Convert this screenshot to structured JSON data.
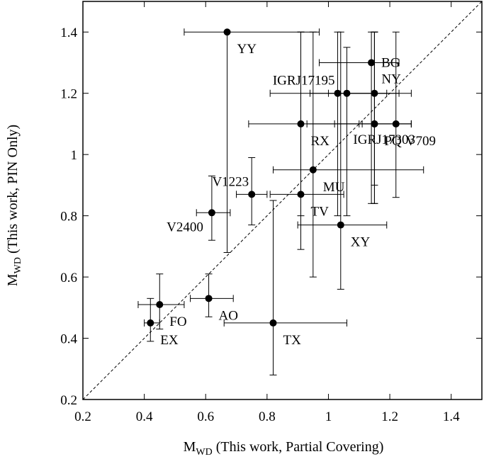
{
  "chart_data": {
    "type": "scatter",
    "x_axis": {
      "label_main": "M",
      "label_sub": "WD",
      "label_rest": " (This work, Partial Covering)",
      "range": [
        0.2,
        1.5
      ],
      "ticks": [
        0.2,
        0.4,
        0.6,
        0.8,
        1,
        1.2,
        1.4
      ],
      "tick_labels": [
        "0.2",
        "0.4",
        "0.6",
        "0.8",
        "1",
        "1.2",
        "1.4"
      ]
    },
    "y_axis": {
      "label_main": "M",
      "label_sub": "WD",
      "label_rest": " (This work, PIN Only)",
      "range": [
        0.2,
        1.5
      ],
      "ticks": [
        0.2,
        0.4,
        0.6,
        0.8,
        1,
        1.2,
        1.4
      ],
      "tick_labels": [
        "0.2",
        "0.4",
        "0.6",
        "0.8",
        "1",
        "1.2",
        "1.4"
      ]
    },
    "reference_line": "y = x (dashed)",
    "grid": false,
    "points": [
      {
        "label": "YY",
        "x": 0.67,
        "y": 1.4,
        "xerr": [
          0.53,
          0.97
        ],
        "yerr": [
          0.68,
          1.4
        ],
        "label_pos": "below-right"
      },
      {
        "label": "BG",
        "x": 1.14,
        "y": 1.3,
        "xerr": [
          0.97,
          1.23
        ],
        "yerr": [
          0.84,
          1.4
        ],
        "label_pos": "right"
      },
      {
        "label": "IGRJ17195",
        "x": 1.03,
        "y": 1.2,
        "xerr": [
          0.81,
          1.23
        ],
        "yerr": [
          0.8,
          1.4
        ],
        "label_pos": "above-left"
      },
      {
        "label": "",
        "x": 1.06,
        "y": 1.2,
        "xerr": [
          0.94,
          1.19
        ],
        "yerr": [
          0.8,
          1.35
        ],
        "label_pos": "none"
      },
      {
        "label": "NY",
        "x": 1.15,
        "y": 1.2,
        "xerr": [
          1.0,
          1.27
        ],
        "yerr": [
          0.9,
          1.4
        ],
        "label_pos": "above-right"
      },
      {
        "label": "IGRJ17303",
        "x": 1.15,
        "y": 1.1,
        "xerr": [
          0.93,
          1.27
        ],
        "yerr": [
          0.84,
          1.4
        ],
        "label_pos": "above"
      },
      {
        "label": "PQ",
        "x": 1.15,
        "y": 1.1,
        "xerr": [
          1.02,
          1.27
        ],
        "yerr": [
          0.84,
          1.4
        ],
        "label_pos": "below-right"
      },
      {
        "label": "V709",
        "x": 1.22,
        "y": 1.1,
        "xerr": [
          1.1,
          1.27
        ],
        "yerr": [
          0.86,
          1.4
        ],
        "label_pos": "below-right"
      },
      {
        "label": "RX",
        "x": 0.91,
        "y": 1.1,
        "xerr": [
          0.74,
          1.11
        ],
        "yerr": [
          0.8,
          1.4
        ],
        "label_pos": "below-right"
      },
      {
        "label": "MU",
        "x": 0.95,
        "y": 0.95,
        "xerr": [
          0.82,
          1.31
        ],
        "yerr": [
          0.6,
          1.4
        ],
        "label_pos": "below-right"
      },
      {
        "label": "V1223",
        "x": 0.75,
        "y": 0.87,
        "xerr": [
          0.7,
          0.8
        ],
        "yerr": [
          0.77,
          0.99
        ],
        "label_pos": "above-left"
      },
      {
        "label": "TV",
        "x": 0.91,
        "y": 0.87,
        "xerr": [
          0.81,
          1.05
        ],
        "yerr": [
          0.69,
          1.4
        ],
        "label_pos": "below-right"
      },
      {
        "label": "V2400",
        "x": 0.62,
        "y": 0.81,
        "xerr": [
          0.57,
          0.68
        ],
        "yerr": [
          0.72,
          0.93
        ],
        "label_pos": "below-left"
      },
      {
        "label": "XY",
        "x": 1.04,
        "y": 0.77,
        "xerr": [
          0.9,
          1.19
        ],
        "yerr": [
          0.56,
          1.4
        ],
        "label_pos": "below-right"
      },
      {
        "label": "AO",
        "x": 0.61,
        "y": 0.53,
        "xerr": [
          0.55,
          0.69
        ],
        "yerr": [
          0.47,
          0.61
        ],
        "label_pos": "below-right"
      },
      {
        "label": "FO",
        "x": 0.45,
        "y": 0.51,
        "xerr": [
          0.38,
          0.53
        ],
        "yerr": [
          0.43,
          0.61
        ],
        "label_pos": "below-right"
      },
      {
        "label": "EX",
        "x": 0.42,
        "y": 0.45,
        "xerr": [
          0.4,
          0.45
        ],
        "yerr": [
          0.39,
          0.53
        ],
        "label_pos": "below-right"
      },
      {
        "label": "TX",
        "x": 0.82,
        "y": 0.45,
        "xerr": [
          0.66,
          1.06
        ],
        "yerr": [
          0.28,
          0.85
        ],
        "label_pos": "below-right"
      }
    ]
  }
}
